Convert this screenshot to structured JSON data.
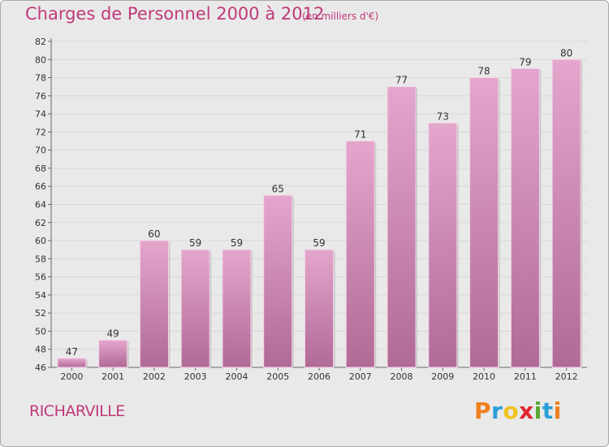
{
  "title": "Charges de Personnel 2000 à 2012",
  "subtitle": "(en milliers d'€)",
  "place": "RICHARVILLE",
  "logo": {
    "text": "Proxiti",
    "letters": [
      {
        "char": "P",
        "color": "#f07f1d"
      },
      {
        "char": "r",
        "color": "#2a9ed8"
      },
      {
        "char": "o",
        "color": "#f0c21d"
      },
      {
        "char": "x",
        "color": "#e0262f"
      },
      {
        "char": "i",
        "color": "#5aa82e"
      },
      {
        "char": "t",
        "color": "#2a9ed8"
      },
      {
        "char": "i",
        "color": "#f07f1d"
      }
    ]
  },
  "colors": {
    "title": "#c0397a",
    "bar_top": "#e4a6cc",
    "bar_bottom": "#b06a96",
    "background": "#e9e9e9",
    "grid": "#d7d7d7"
  },
  "chart_data": {
    "type": "bar",
    "title": "Charges de Personnel 2000 à 2012",
    "subtitle": "(en milliers d'€)",
    "xlabel": "",
    "ylabel": "",
    "categories": [
      "2000",
      "2001",
      "2002",
      "2003",
      "2004",
      "2005",
      "2006",
      "2007",
      "2008",
      "2009",
      "2010",
      "2011",
      "2012"
    ],
    "values": [
      47,
      49,
      60,
      59,
      59,
      65,
      59,
      71,
      77,
      73,
      78,
      79,
      80
    ],
    "ylim": [
      46,
      82
    ],
    "yticks": [
      46,
      48,
      50,
      52,
      54,
      56,
      58,
      60,
      62,
      64,
      66,
      68,
      70,
      72,
      74,
      76,
      78,
      80,
      82
    ],
    "grid": true,
    "data_labels": true
  }
}
